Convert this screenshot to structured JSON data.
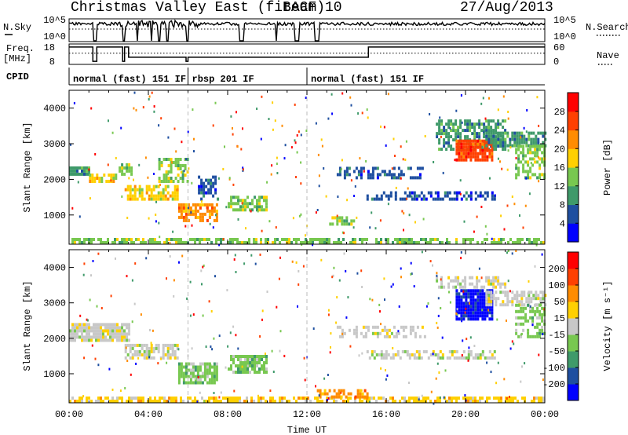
{
  "header": {
    "title": "Christmas Valley East (fitACF)",
    "beam": "Beam 10",
    "date": "27/Aug/2013"
  },
  "chart_data": [
    {
      "type": "line",
      "panel": "noise",
      "left_label": "N.Sky",
      "right_label": "N.Search",
      "left_ticks": [
        "10^5",
        "10^0"
      ],
      "right_ticks": [
        "10^5",
        "10^0"
      ],
      "dotted_level_fraction": 0.55,
      "noise_level_fraction": 0.78,
      "gaps_hours": [
        [
          1.2,
          1.4
        ],
        [
          2.7,
          2.8
        ],
        [
          3.4,
          3.5
        ],
        [
          4.1,
          4.2
        ],
        [
          4.5,
          4.6
        ],
        [
          4.9,
          5.0
        ],
        [
          5.9,
          6.0
        ],
        [
          8.6,
          8.8
        ],
        [
          10.4,
          10.5
        ],
        [
          11.4,
          11.6
        ],
        [
          12.4,
          12.6
        ]
      ]
    },
    {
      "type": "line",
      "panel": "frequency",
      "left_label_1": "Freq.",
      "left_label_2": "[MHz]",
      "right_label": "Nave",
      "left_ticks": [
        "18",
        "8"
      ],
      "right_ticks": [
        "60",
        "0"
      ],
      "freq_segments": [
        {
          "start": 0.0,
          "end": 1.2,
          "level": 0.85
        },
        {
          "start": 1.2,
          "end": 1.4,
          "level": 0.15
        },
        {
          "start": 1.4,
          "end": 2.7,
          "level": 0.85
        },
        {
          "start": 2.7,
          "end": 2.8,
          "level": 0.15
        },
        {
          "start": 2.8,
          "end": 3.0,
          "level": 0.85
        },
        {
          "start": 3.0,
          "end": 5.9,
          "level": 0.35
        },
        {
          "start": 5.9,
          "end": 6.0,
          "level": 0.15
        },
        {
          "start": 6.0,
          "end": 15.1,
          "level": 0.35
        },
        {
          "start": 15.1,
          "end": 24.0,
          "level": 0.85
        }
      ],
      "nave_dotted_fraction": 0.55
    },
    {
      "type": "table",
      "panel": "cpid",
      "label": "CPID",
      "segments": [
        {
          "start": 0.0,
          "end": 6.0,
          "text": "normal (fast) 151 IF"
        },
        {
          "start": 6.0,
          "end": 12.0,
          "text": "rbsp 201 IF"
        },
        {
          "start": 12.0,
          "end": 24.0,
          "text": "normal (fast) 151 IF"
        }
      ]
    },
    {
      "type": "heatmap",
      "panel": "power",
      "ylabel": "Slant Range [km]",
      "yticks": [
        1000,
        2000,
        3000,
        4000
      ],
      "ylim": [
        180,
        4500
      ],
      "xlim": [
        0,
        24
      ],
      "colorbar": {
        "label": "Power [dB]",
        "ticks": [
          "4",
          "8",
          "12",
          "16",
          "20",
          "24",
          "28"
        ],
        "colors": [
          "#0000ff",
          "#1f4fa0",
          "#3f9a6a",
          "#78c850",
          "#ffd000",
          "#ff8c00",
          "#ff4000",
          "#ff0000"
        ],
        "range": [
          0,
          30
        ]
      },
      "regions": [
        {
          "t0": 0.0,
          "t1": 1.0,
          "r0": 2100,
          "r1": 2350,
          "c": 2,
          "d": 0.9
        },
        {
          "t0": 1.0,
          "t1": 2.5,
          "r0": 1900,
          "r1": 2150,
          "c": 4,
          "d": 0.8
        },
        {
          "t0": 2.5,
          "t1": 3.2,
          "r0": 2100,
          "r1": 2400,
          "c": 3,
          "d": 0.7
        },
        {
          "t0": 2.8,
          "t1": 5.5,
          "r0": 1400,
          "r1": 1800,
          "c": 4,
          "d": 0.7
        },
        {
          "t0": 4.5,
          "t1": 6.0,
          "r0": 1900,
          "r1": 2600,
          "c": 3,
          "d": 0.5
        },
        {
          "t0": 5.5,
          "t1": 7.5,
          "r0": 800,
          "r1": 1300,
          "c": 5,
          "d": 0.7
        },
        {
          "t0": 6.5,
          "t1": 7.5,
          "r0": 1400,
          "r1": 2100,
          "c": 1,
          "d": 0.5
        },
        {
          "t0": 8.0,
          "t1": 10.0,
          "r0": 1100,
          "r1": 1500,
          "c": 3,
          "d": 0.6
        },
        {
          "t0": 0.0,
          "t1": 24.0,
          "r0": 180,
          "r1": 350,
          "c": 3,
          "d": 0.6
        },
        {
          "t0": 13.0,
          "t1": 14.5,
          "r0": 700,
          "r1": 900,
          "c": 3,
          "d": 0.5
        },
        {
          "t0": 13.5,
          "t1": 18.0,
          "r0": 2000,
          "r1": 2300,
          "c": 1,
          "d": 0.4
        },
        {
          "t0": 15.0,
          "t1": 21.5,
          "r0": 1400,
          "r1": 1600,
          "c": 1,
          "d": 0.5
        },
        {
          "t0": 18.5,
          "t1": 22.0,
          "r0": 2800,
          "r1": 3600,
          "c": 2,
          "d": 0.6
        },
        {
          "t0": 19.5,
          "t1": 21.3,
          "r0": 2500,
          "r1": 3100,
          "c": 6,
          "d": 0.9
        },
        {
          "t0": 21.0,
          "t1": 24.0,
          "r0": 2900,
          "r1": 3300,
          "c": 2,
          "d": 0.7
        },
        {
          "t0": 22.5,
          "t1": 24.0,
          "r0": 2000,
          "r1": 2900,
          "c": 3,
          "d": 0.6
        }
      ]
    },
    {
      "type": "heatmap",
      "panel": "velocity",
      "ylabel": "Slant Range [km]",
      "yticks": [
        1000,
        2000,
        3000,
        4000
      ],
      "ylim": [
        180,
        4500
      ],
      "xlim": [
        0,
        24
      ],
      "xticks": [
        "00:00",
        "04:00",
        "08:00",
        "12:00",
        "16:00",
        "20:00",
        "00:00"
      ],
      "xlabel": "Time UT",
      "colorbar": {
        "label": "Velocity [m s⁻¹]",
        "ticks": [
          "200",
          "100",
          "50",
          "15",
          "-15",
          "-50",
          "-100",
          "-200"
        ],
        "colors": [
          "#0000ff",
          "#1f4fa0",
          "#3f9a6a",
          "#78c850",
          "#c8c8c8",
          "#ffd000",
          "#ff8c00",
          "#ff4000",
          "#ff0000"
        ],
        "range": [
          -250,
          250
        ]
      },
      "regions": [
        {
          "t0": 0.0,
          "t1": 3.0,
          "r0": 1900,
          "r1": 2400,
          "c": 4,
          "d": 0.9
        },
        {
          "t0": 2.8,
          "t1": 5.5,
          "r0": 1400,
          "r1": 1800,
          "c": 4,
          "d": 0.7
        },
        {
          "t0": 5.5,
          "t1": 7.5,
          "r0": 700,
          "r1": 1300,
          "c": 3,
          "d": 0.8
        },
        {
          "t0": 8.0,
          "t1": 10.0,
          "r0": 1000,
          "r1": 1500,
          "c": 3,
          "d": 0.8
        },
        {
          "t0": 0.0,
          "t1": 24.0,
          "r0": 180,
          "r1": 350,
          "c": 5,
          "d": 0.6
        },
        {
          "t0": 12.5,
          "t1": 15.0,
          "r0": 300,
          "r1": 500,
          "c": 6,
          "d": 0.5
        },
        {
          "t0": 13.5,
          "t1": 18.0,
          "r0": 2000,
          "r1": 2300,
          "c": 4,
          "d": 0.4
        },
        {
          "t0": 15.0,
          "t1": 21.5,
          "r0": 1400,
          "r1": 1600,
          "c": 4,
          "d": 0.5
        },
        {
          "t0": 18.5,
          "t1": 22.0,
          "r0": 3400,
          "r1": 3700,
          "c": 4,
          "d": 0.5
        },
        {
          "t0": 19.5,
          "t1": 21.3,
          "r0": 2500,
          "r1": 3300,
          "c": 0,
          "d": 0.9
        },
        {
          "t0": 21.0,
          "t1": 24.0,
          "r0": 2900,
          "r1": 3300,
          "c": 4,
          "d": 0.7
        },
        {
          "t0": 22.5,
          "t1": 24.0,
          "r0": 2000,
          "r1": 2900,
          "c": 3,
          "d": 0.5
        }
      ]
    }
  ]
}
